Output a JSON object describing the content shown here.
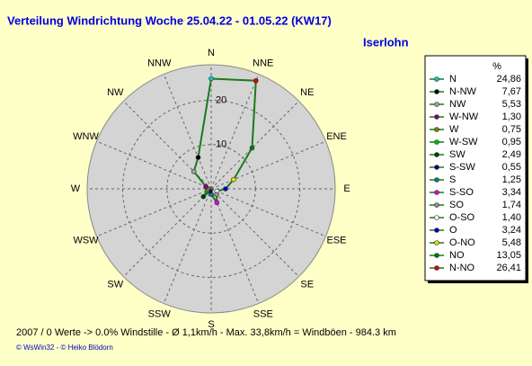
{
  "chart_data": {
    "type": "radar",
    "title": "Verteilung Windrichtung   Woche 25.04.22 - 01.05.22 (KW17)",
    "subtitle": "Iserlohn",
    "categories": [
      "N",
      "NNE",
      "NE",
      "ENE",
      "E",
      "ESE",
      "SE",
      "SSE",
      "S",
      "SSW",
      "SW",
      "WSW",
      "W",
      "WNW",
      "NW",
      "NNW"
    ],
    "series": [
      {
        "name": "%",
        "color": "#1a7a1a",
        "values": [
          24.86,
          26.41,
          13.05,
          5.48,
          3.24,
          1.4,
          1.74,
          3.34,
          1.25,
          0.55,
          2.49,
          0.95,
          0.75,
          1.3,
          5.53,
          7.67
        ],
        "value_labels": [
          "24,86",
          "26,41",
          "13,05",
          "5,48",
          "3,24",
          "1,40",
          "1,74",
          "3,34",
          "1,25",
          "0,55",
          "2,49",
          "0,95",
          "0,75",
          "1,30",
          "5,53",
          "7,67"
        ],
        "point_names": [
          "N",
          "N-NO",
          "NO",
          "O-NO",
          "O",
          "O-SO",
          "SO",
          "S-SO",
          "S",
          "S-SW",
          "SW",
          "W-SW",
          "W",
          "W-NW",
          "NW",
          "N-NW"
        ],
        "point_colors": [
          "#00c8c8",
          "#e00000",
          "#008000",
          "#e0e000",
          "#0000c0",
          "#ffffff",
          "#909090",
          "#e000e0",
          "#008080",
          "#000080",
          "#004000",
          "#00c000",
          "#808000",
          "#800080",
          "#a0a0a0",
          "#000000"
        ]
      }
    ],
    "ylim": [
      0,
      28
    ],
    "yticks": [
      10,
      20
    ],
    "grid": true,
    "footer": "2007 / 0 Werte  -> 0.0% Windstille   -   Ø 1,1km/h  -  Max. 33,8km/h = Windböen   -   984.3 km",
    "credit": "© WsWin32  - © Heiko Blödorn"
  }
}
